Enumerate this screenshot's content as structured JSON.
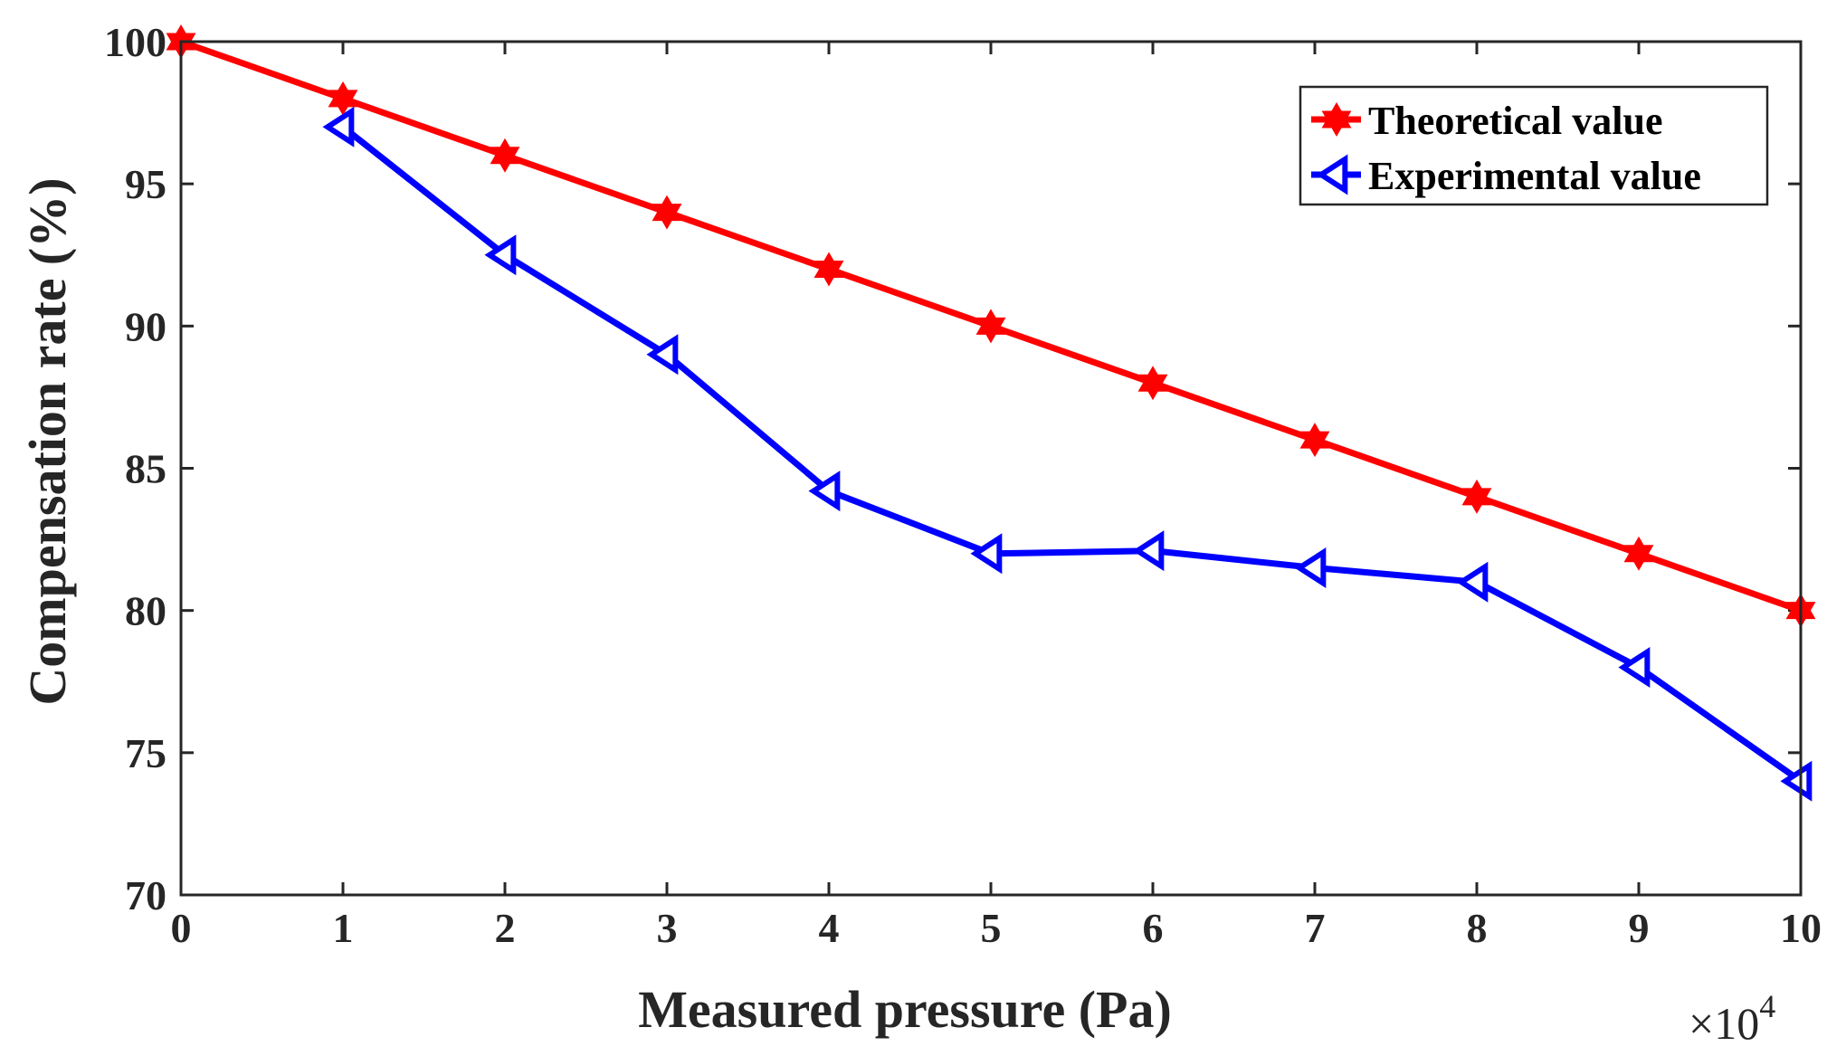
{
  "chart_data": {
    "type": "line",
    "xlabel": "Measured pressure (Pa)",
    "ylabel": "Compensation rate (%)",
    "x_exponent": {
      "prefix": "×10",
      "power": "4"
    },
    "xlim": [
      0,
      10
    ],
    "ylim": [
      70,
      100
    ],
    "xticks": [
      "0",
      "1",
      "2",
      "3",
      "4",
      "5",
      "6",
      "7",
      "8",
      "9",
      "10"
    ],
    "yticks": [
      "70",
      "75",
      "80",
      "85",
      "90",
      "95",
      "100"
    ],
    "legend_position": "top-right",
    "series": [
      {
        "name": "Theoretical value",
        "color": "#ff0000",
        "marker": "hexagram",
        "x": [
          0,
          1,
          2,
          3,
          4,
          5,
          6,
          7,
          8,
          9,
          10
        ],
        "values": [
          100,
          98,
          96,
          94,
          92,
          90,
          88,
          86,
          84,
          82,
          80
        ]
      },
      {
        "name": "Experimental value",
        "color": "#0000ff",
        "marker": "left-triangle",
        "x": [
          1,
          2,
          3,
          4,
          5,
          6,
          7,
          8,
          9,
          10
        ],
        "values": [
          97,
          92.5,
          89,
          84.2,
          82,
          82.1,
          81.5,
          81,
          78,
          74
        ]
      }
    ]
  }
}
